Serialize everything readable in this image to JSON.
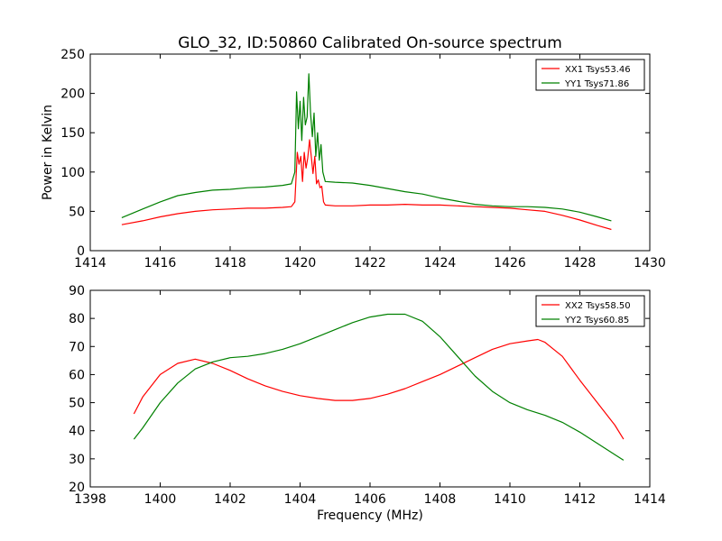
{
  "figure": {
    "title": "GLO_32, ID:50860 Calibrated On-source spectrum",
    "ylabel": "Power in Kelvin",
    "xlabel": "Frequency (MHz)"
  },
  "chart_data": [
    {
      "type": "line",
      "xlim": [
        1414,
        1430
      ],
      "ylim": [
        0,
        250
      ],
      "xticks": [
        1414,
        1416,
        1418,
        1420,
        1422,
        1424,
        1426,
        1428,
        1430
      ],
      "yticks": [
        0,
        50,
        100,
        150,
        200,
        250
      ],
      "legend_position": "top-right",
      "series": [
        {
          "name": "XX1 Tsys53.46",
          "color": "#ff0000",
          "x": [
            1414.9,
            1415.5,
            1416.0,
            1416.5,
            1417.0,
            1417.5,
            1418.0,
            1418.5,
            1419.0,
            1419.5,
            1419.75,
            1419.85,
            1419.92,
            1419.97,
            1420.02,
            1420.07,
            1420.12,
            1420.17,
            1420.22,
            1420.27,
            1420.32,
            1420.37,
            1420.42,
            1420.47,
            1420.52,
            1420.57,
            1420.62,
            1420.67,
            1420.72,
            1421.0,
            1421.5,
            1422.0,
            1422.5,
            1423.0,
            1423.5,
            1424.0,
            1424.5,
            1425.0,
            1425.5,
            1426.0,
            1426.5,
            1427.0,
            1427.5,
            1428.0,
            1428.5,
            1428.9
          ],
          "y": [
            33,
            38,
            43,
            47,
            50,
            52,
            53,
            54,
            54,
            55,
            56,
            62,
            125,
            110,
            120,
            88,
            125,
            105,
            118,
            141,
            120,
            98,
            120,
            85,
            90,
            80,
            82,
            62,
            58,
            57,
            57,
            58,
            58,
            59,
            58,
            58,
            57,
            56,
            55,
            54,
            52,
            50,
            45,
            39,
            32,
            27
          ]
        },
        {
          "name": "YY1 Tsys71.86",
          "color": "#008000",
          "x": [
            1414.9,
            1415.5,
            1416.0,
            1416.5,
            1417.0,
            1417.5,
            1418.0,
            1418.5,
            1419.0,
            1419.5,
            1419.75,
            1419.85,
            1419.9,
            1419.95,
            1420.0,
            1420.05,
            1420.1,
            1420.15,
            1420.2,
            1420.25,
            1420.3,
            1420.35,
            1420.4,
            1420.45,
            1420.5,
            1420.55,
            1420.6,
            1420.65,
            1420.72,
            1421.0,
            1421.5,
            1422.0,
            1422.5,
            1423.0,
            1423.5,
            1424.0,
            1424.5,
            1425.0,
            1425.5,
            1426.0,
            1426.5,
            1427.0,
            1427.5,
            1428.0,
            1428.5,
            1428.9
          ],
          "y": [
            42,
            53,
            62,
            70,
            74,
            77,
            78,
            80,
            81,
            83,
            85,
            100,
            202,
            155,
            190,
            140,
            195,
            160,
            170,
            225,
            175,
            145,
            175,
            120,
            150,
            115,
            135,
            100,
            88,
            87,
            86,
            83,
            79,
            75,
            72,
            67,
            63,
            59,
            57,
            56,
            56,
            55,
            53,
            49,
            43,
            38
          ]
        }
      ]
    },
    {
      "type": "line",
      "xlim": [
        1398,
        1414
      ],
      "ylim": [
        20,
        90
      ],
      "xticks": [
        1398,
        1400,
        1402,
        1404,
        1406,
        1408,
        1410,
        1412,
        1414
      ],
      "yticks": [
        20,
        30,
        40,
        50,
        60,
        70,
        80,
        90
      ],
      "legend_position": "top-right",
      "series": [
        {
          "name": "XX2 Tsys58.50",
          "color": "#ff0000",
          "x": [
            1399.25,
            1399.5,
            1400.0,
            1400.5,
            1401.0,
            1401.5,
            1402.0,
            1402.5,
            1403.0,
            1403.5,
            1404.0,
            1404.5,
            1405.0,
            1405.5,
            1406.0,
            1406.5,
            1407.0,
            1407.5,
            1408.0,
            1408.5,
            1409.0,
            1409.5,
            1410.0,
            1410.5,
            1410.8,
            1411.0,
            1411.5,
            1412.0,
            1412.5,
            1413.0,
            1413.25
          ],
          "y": [
            46,
            52,
            60,
            64,
            65.5,
            64,
            61.5,
            58.5,
            56,
            54,
            52.5,
            51.5,
            50.8,
            50.8,
            51.5,
            53,
            55,
            57.5,
            60,
            63,
            66,
            69,
            71,
            72,
            72.5,
            71.5,
            66.5,
            58,
            50,
            42,
            37
          ]
        },
        {
          "name": "YY2 Tsys60.85",
          "color": "#008000",
          "x": [
            1399.25,
            1399.5,
            1400.0,
            1400.5,
            1401.0,
            1401.5,
            1402.0,
            1402.5,
            1403.0,
            1403.5,
            1404.0,
            1404.5,
            1405.0,
            1405.5,
            1406.0,
            1406.5,
            1407.0,
            1407.5,
            1408.0,
            1408.5,
            1409.0,
            1409.5,
            1410.0,
            1410.5,
            1411.0,
            1411.5,
            1412.0,
            1412.5,
            1413.0,
            1413.25
          ],
          "y": [
            37,
            41,
            50,
            57,
            62,
            64.5,
            66,
            66.5,
            67.5,
            69,
            71,
            73.5,
            76,
            78.5,
            80.5,
            81.5,
            81.5,
            79,
            73.5,
            66.5,
            59.5,
            54,
            50,
            47.5,
            45.5,
            43,
            39.5,
            35.5,
            31.5,
            29.5
          ]
        }
      ]
    }
  ]
}
